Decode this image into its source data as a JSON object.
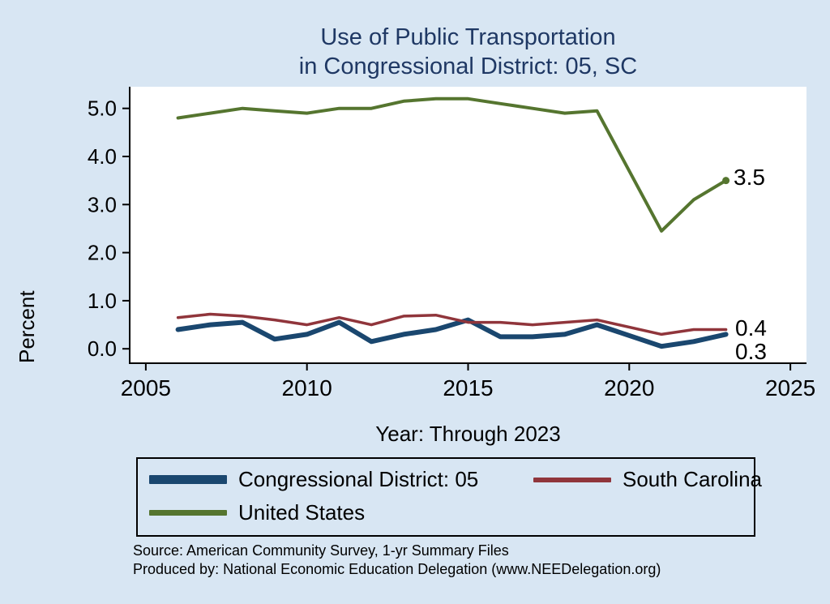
{
  "title": {
    "line1": "Use of Public Transportation",
    "line2": "in Congressional District: 05, SC"
  },
  "end_labels": {
    "us": "3.5",
    "sc": "0.4",
    "cd": "0.3"
  },
  "source": {
    "line1": "Source: American Community Survey, 1-yr Summary Files",
    "line2": "Produced by: National Economic Education Delegation (www.NEEDelegation.org)"
  },
  "chart_data": {
    "type": "line",
    "title": "Use of Public Transportation in Congressional District: 05, SC",
    "xlabel": "Year: Through 2023",
    "ylabel": "Percent",
    "x": [
      2006,
      2007,
      2008,
      2009,
      2010,
      2011,
      2012,
      2013,
      2014,
      2015,
      2016,
      2017,
      2018,
      2019,
      2021,
      2022,
      2023
    ],
    "series": [
      {
        "name": "Congressional District: 05",
        "color": "#1a476f",
        "width": 6,
        "values": [
          0.4,
          0.5,
          0.55,
          0.2,
          0.3,
          0.55,
          0.15,
          0.3,
          0.4,
          0.6,
          0.25,
          0.25,
          0.3,
          0.5,
          0.05,
          0.15,
          0.3
        ]
      },
      {
        "name": "South Carolina",
        "color": "#90353b",
        "width": 3.5,
        "values": [
          0.65,
          0.72,
          0.68,
          0.6,
          0.5,
          0.65,
          0.5,
          0.68,
          0.7,
          0.55,
          0.55,
          0.5,
          0.55,
          0.6,
          0.3,
          0.4,
          0.4
        ]
      },
      {
        "name": "United States",
        "color": "#55752f",
        "width": 4,
        "end_dot": true,
        "values": [
          4.8,
          4.9,
          5.0,
          4.95,
          4.9,
          5.0,
          5.0,
          5.15,
          5.2,
          5.2,
          5.1,
          5.0,
          4.9,
          4.95,
          2.45,
          3.1,
          3.5
        ]
      }
    ],
    "xlim": [
      2004.5,
      2025.5
    ],
    "ylim": [
      -0.3,
      5.45
    ],
    "xticks": [
      2005,
      2010,
      2015,
      2020,
      2025
    ],
    "ytick_values": [
      0,
      1,
      2,
      3,
      4,
      5
    ],
    "yticks": [
      "0.0",
      "1.0",
      "2.0",
      "3.0",
      "4.0",
      "5.0"
    ],
    "grid": false,
    "legend_position": "bottom"
  }
}
